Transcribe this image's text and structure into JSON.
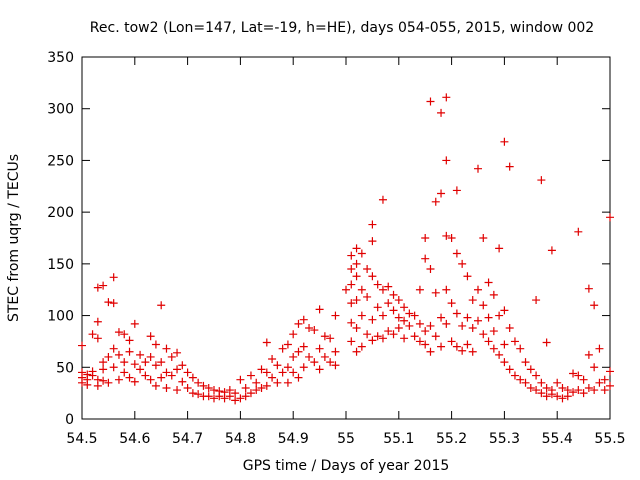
{
  "chart_data": {
    "type": "scatter",
    "title": "Rec. tow2 (Lon=147, Lat=-19, h=HE), days 054-055, 2015, window 002",
    "xlabel": "GPS time / Days of year 2015",
    "ylabel": "STEC from uqrg / TECUs",
    "xlim": [
      54.5,
      55.5
    ],
    "ylim": [
      0,
      350
    ],
    "xticks": [
      54.5,
      54.6,
      54.7,
      54.8,
      54.9,
      55,
      55.1,
      55.2,
      55.3,
      55.4,
      55.5
    ],
    "xtick_labels": [
      "54.5",
      "54.6",
      "54.7",
      "54.8",
      "54.9",
      "55",
      "55.1",
      "55.2",
      "55.3",
      "55.4",
      "55.5"
    ],
    "yticks": [
      0,
      50,
      100,
      150,
      200,
      250,
      300,
      350
    ],
    "ytick_labels": [
      "0",
      "50",
      "100",
      "150",
      "200",
      "250",
      "300",
      "350"
    ],
    "grid": false,
    "marker": "+",
    "color": "#e00000",
    "points": [
      [
        54.5,
        71
      ],
      [
        54.5,
        45
      ],
      [
        54.5,
        40
      ],
      [
        54.5,
        35
      ],
      [
        54.51,
        43
      ],
      [
        54.51,
        38
      ],
      [
        54.51,
        33
      ],
      [
        54.52,
        82
      ],
      [
        54.52,
        46
      ],
      [
        54.52,
        42
      ],
      [
        54.53,
        94
      ],
      [
        54.53,
        78
      ],
      [
        54.53,
        127
      ],
      [
        54.53,
        38
      ],
      [
        54.53,
        32
      ],
      [
        54.54,
        129
      ],
      [
        54.54,
        55
      ],
      [
        54.54,
        48
      ],
      [
        54.54,
        37
      ],
      [
        54.55,
        113
      ],
      [
        54.55,
        60
      ],
      [
        54.55,
        35
      ],
      [
        54.56,
        137
      ],
      [
        54.56,
        112
      ],
      [
        54.56,
        68
      ],
      [
        54.56,
        50
      ],
      [
        54.57,
        84
      ],
      [
        54.57,
        62
      ],
      [
        54.57,
        38
      ],
      [
        54.58,
        82
      ],
      [
        54.58,
        55
      ],
      [
        54.58,
        45
      ],
      [
        54.59,
        76
      ],
      [
        54.59,
        65
      ],
      [
        54.59,
        40
      ],
      [
        54.6,
        92
      ],
      [
        54.6,
        53
      ],
      [
        54.6,
        36
      ],
      [
        54.61,
        62
      ],
      [
        54.61,
        48
      ],
      [
        54.62,
        55
      ],
      [
        54.62,
        42
      ],
      [
        54.63,
        80
      ],
      [
        54.63,
        60
      ],
      [
        54.63,
        38
      ],
      [
        54.64,
        72
      ],
      [
        54.64,
        52
      ],
      [
        54.64,
        32
      ],
      [
        54.65,
        110
      ],
      [
        54.65,
        55
      ],
      [
        54.65,
        40
      ],
      [
        54.66,
        68
      ],
      [
        54.66,
        45
      ],
      [
        54.66,
        30
      ],
      [
        54.67,
        60
      ],
      [
        54.67,
        42
      ],
      [
        54.68,
        64
      ],
      [
        54.68,
        48
      ],
      [
        54.68,
        28
      ],
      [
        54.69,
        52
      ],
      [
        54.69,
        36
      ],
      [
        54.7,
        45
      ],
      [
        54.7,
        30
      ],
      [
        54.71,
        40
      ],
      [
        54.71,
        25
      ],
      [
        54.72,
        35
      ],
      [
        54.72,
        24
      ],
      [
        54.73,
        32
      ],
      [
        54.73,
        22
      ],
      [
        54.74,
        30
      ],
      [
        54.74,
        22
      ],
      [
        54.75,
        28
      ],
      [
        54.75,
        20
      ],
      [
        54.76,
        27
      ],
      [
        54.76,
        22
      ],
      [
        54.77,
        26
      ],
      [
        54.77,
        20
      ],
      [
        54.78,
        28
      ],
      [
        54.78,
        22
      ],
      [
        54.79,
        25
      ],
      [
        54.79,
        18
      ],
      [
        54.8,
        38
      ],
      [
        54.8,
        20
      ],
      [
        54.81,
        30
      ],
      [
        54.81,
        22
      ],
      [
        54.82,
        42
      ],
      [
        54.82,
        25
      ],
      [
        54.83,
        35
      ],
      [
        54.83,
        28
      ],
      [
        54.84,
        48
      ],
      [
        54.84,
        30
      ],
      [
        54.85,
        74
      ],
      [
        54.85,
        45
      ],
      [
        54.85,
        32
      ],
      [
        54.86,
        58
      ],
      [
        54.86,
        40
      ],
      [
        54.87,
        52
      ],
      [
        54.87,
        35
      ],
      [
        54.88,
        68
      ],
      [
        54.88,
        45
      ],
      [
        54.89,
        72
      ],
      [
        54.89,
        50
      ],
      [
        54.89,
        35
      ],
      [
        54.9,
        82
      ],
      [
        54.9,
        60
      ],
      [
        54.9,
        45
      ],
      [
        54.91,
        92
      ],
      [
        54.91,
        65
      ],
      [
        54.91,
        40
      ],
      [
        54.92,
        96
      ],
      [
        54.92,
        70
      ],
      [
        54.92,
        50
      ],
      [
        54.93,
        88
      ],
      [
        54.93,
        60
      ],
      [
        54.94,
        86
      ],
      [
        54.94,
        55
      ],
      [
        54.95,
        106
      ],
      [
        54.95,
        68
      ],
      [
        54.95,
        48
      ],
      [
        54.96,
        80
      ],
      [
        54.96,
        60
      ],
      [
        54.97,
        78
      ],
      [
        54.97,
        55
      ],
      [
        54.98,
        100
      ],
      [
        54.98,
        65
      ],
      [
        54.98,
        52
      ],
      [
        55.0,
        125
      ],
      [
        55.01,
        158
      ],
      [
        55.01,
        145
      ],
      [
        55.01,
        130
      ],
      [
        55.01,
        112
      ],
      [
        55.01,
        93
      ],
      [
        55.01,
        75
      ],
      [
        55.02,
        165
      ],
      [
        55.02,
        150
      ],
      [
        55.02,
        138
      ],
      [
        55.02,
        115
      ],
      [
        55.02,
        88
      ],
      [
        55.02,
        65
      ],
      [
        55.03,
        160
      ],
      [
        55.03,
        125
      ],
      [
        55.03,
        100
      ],
      [
        55.03,
        70
      ],
      [
        55.04,
        145
      ],
      [
        55.04,
        118
      ],
      [
        55.04,
        82
      ],
      [
        55.05,
        188
      ],
      [
        55.05,
        172
      ],
      [
        55.05,
        138
      ],
      [
        55.05,
        96
      ],
      [
        55.05,
        76
      ],
      [
        55.06,
        130
      ],
      [
        55.06,
        108
      ],
      [
        55.06,
        80
      ],
      [
        55.07,
        212
      ],
      [
        55.07,
        125
      ],
      [
        55.07,
        100
      ],
      [
        55.07,
        78
      ],
      [
        55.08,
        128
      ],
      [
        55.08,
        112
      ],
      [
        55.08,
        85
      ],
      [
        55.09,
        120
      ],
      [
        55.09,
        105
      ],
      [
        55.09,
        82
      ],
      [
        55.1,
        115
      ],
      [
        55.1,
        98
      ],
      [
        55.1,
        88
      ],
      [
        55.11,
        108
      ],
      [
        55.11,
        95
      ],
      [
        55.11,
        78
      ],
      [
        55.12,
        102
      ],
      [
        55.12,
        90
      ],
      [
        55.13,
        100
      ],
      [
        55.13,
        80
      ],
      [
        55.14,
        125
      ],
      [
        55.14,
        92
      ],
      [
        55.14,
        75
      ],
      [
        55.15,
        175
      ],
      [
        55.15,
        155
      ],
      [
        55.15,
        85
      ],
      [
        55.15,
        72
      ],
      [
        55.16,
        307
      ],
      [
        55.16,
        145
      ],
      [
        55.16,
        90
      ],
      [
        55.16,
        65
      ],
      [
        55.17,
        210
      ],
      [
        55.17,
        122
      ],
      [
        55.17,
        80
      ],
      [
        55.18,
        296
      ],
      [
        55.18,
        218
      ],
      [
        55.18,
        98
      ],
      [
        55.18,
        70
      ],
      [
        55.19,
        311
      ],
      [
        55.19,
        250
      ],
      [
        55.19,
        177
      ],
      [
        55.19,
        125
      ],
      [
        55.19,
        92
      ],
      [
        55.2,
        175
      ],
      [
        55.2,
        112
      ],
      [
        55.2,
        75
      ],
      [
        55.21,
        221
      ],
      [
        55.21,
        160
      ],
      [
        55.21,
        102
      ],
      [
        55.21,
        70
      ],
      [
        55.22,
        150
      ],
      [
        55.22,
        90
      ],
      [
        55.22,
        66
      ],
      [
        55.23,
        138
      ],
      [
        55.23,
        98
      ],
      [
        55.23,
        72
      ],
      [
        55.24,
        115
      ],
      [
        55.24,
        88
      ],
      [
        55.24,
        65
      ],
      [
        55.25,
        242
      ],
      [
        55.25,
        125
      ],
      [
        55.25,
        95
      ],
      [
        55.26,
        175
      ],
      [
        55.26,
        110
      ],
      [
        55.26,
        82
      ],
      [
        55.27,
        132
      ],
      [
        55.27,
        98
      ],
      [
        55.27,
        75
      ],
      [
        55.28,
        120
      ],
      [
        55.28,
        85
      ],
      [
        55.28,
        68
      ],
      [
        55.29,
        165
      ],
      [
        55.29,
        100
      ],
      [
        55.29,
        62
      ],
      [
        55.3,
        268
      ],
      [
        55.3,
        105
      ],
      [
        55.3,
        72
      ],
      [
        55.3,
        55
      ],
      [
        55.31,
        244
      ],
      [
        55.31,
        88
      ],
      [
        55.31,
        48
      ],
      [
        55.32,
        75
      ],
      [
        55.32,
        42
      ],
      [
        55.33,
        68
      ],
      [
        55.33,
        38
      ],
      [
        55.34,
        55
      ],
      [
        55.34,
        35
      ],
      [
        55.35,
        48
      ],
      [
        55.35,
        30
      ],
      [
        55.36,
        115
      ],
      [
        55.36,
        42
      ],
      [
        55.36,
        28
      ],
      [
        55.37,
        231
      ],
      [
        55.37,
        35
      ],
      [
        55.37,
        25
      ],
      [
        55.38,
        74
      ],
      [
        55.38,
        30
      ],
      [
        55.38,
        22
      ],
      [
        55.39,
        163
      ],
      [
        55.39,
        28
      ],
      [
        55.39,
        24
      ],
      [
        55.4,
        35
      ],
      [
        55.4,
        22
      ],
      [
        55.41,
        30
      ],
      [
        55.41,
        20
      ],
      [
        55.42,
        28
      ],
      [
        55.42,
        22
      ],
      [
        55.43,
        44
      ],
      [
        55.43,
        26
      ],
      [
        55.44,
        181
      ],
      [
        55.44,
        42
      ],
      [
        55.44,
        28
      ],
      [
        55.45,
        38
      ],
      [
        55.45,
        25
      ],
      [
        55.46,
        126
      ],
      [
        55.46,
        62
      ],
      [
        55.46,
        30
      ],
      [
        55.47,
        110
      ],
      [
        55.47,
        50
      ],
      [
        55.47,
        28
      ],
      [
        55.48,
        68
      ],
      [
        55.48,
        35
      ],
      [
        55.49,
        38
      ],
      [
        55.49,
        28
      ],
      [
        55.5,
        195
      ],
      [
        55.5,
        46
      ],
      [
        55.5,
        32
      ]
    ]
  }
}
